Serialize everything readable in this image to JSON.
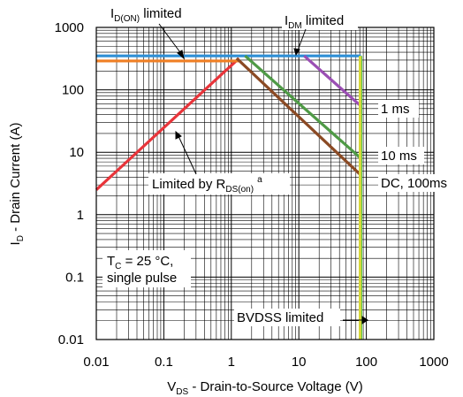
{
  "chart_data": {
    "type": "line",
    "x_scale": "log",
    "y_scale": "log",
    "xlim": [
      0.01,
      1000
    ],
    "ylim": [
      0.01,
      1000
    ],
    "grid": true,
    "x_ticks": [
      "0.01",
      "0.1",
      "1",
      "10",
      "100",
      "1000"
    ],
    "y_ticks": [
      "0.01",
      "0.1",
      "1",
      "10",
      "100",
      "1000"
    ],
    "xlabel": {
      "main": "V",
      "sub": "DS",
      "rest": " - Drain-to-Source Voltage (V)"
    },
    "ylabel": {
      "main": "I",
      "sub": "D",
      "rest": " - Drain Current (A)"
    },
    "series": [
      {
        "name": "RDS(on) limit",
        "color": "#e8343a",
        "x": [
          0.01,
          1.3
        ],
        "y": [
          2.5,
          320
        ]
      },
      {
        "name": "ID(ON) limit",
        "color": "#f07f24",
        "x": [
          0.01,
          1.3
        ],
        "y": [
          290,
          290
        ]
      },
      {
        "name": "IDM limit",
        "color": "#2f8fd6",
        "x": [
          0.01,
          83
        ],
        "y": [
          350,
          350
        ]
      },
      {
        "name": "1 ms",
        "color": "#9b4fb4",
        "x": [
          12,
          83
        ],
        "y": [
          350,
          55
        ]
      },
      {
        "name": "10 ms",
        "color": "#4f9a46",
        "x": [
          1.6,
          83
        ],
        "y": [
          350,
          8
        ]
      },
      {
        "name": "DC, 100ms",
        "color": "#8b4a24",
        "x": [
          1.2,
          83
        ],
        "y": [
          320,
          4.3
        ]
      },
      {
        "name": "BVDSS limit",
        "color": "#3bbf4a",
        "x": [
          83,
          83
        ],
        "y": [
          0.01,
          350
        ]
      },
      {
        "name": "BVDSS limit (yellow)",
        "color": "#d8d83a",
        "x": [
          81,
          81
        ],
        "y": [
          0.01,
          350
        ]
      }
    ],
    "annotations": {
      "id_on": {
        "main": "I",
        "sub": "D(ON)",
        "rest": " limited"
      },
      "idm": {
        "main": "I",
        "sub": "DM",
        "rest": " limited"
      },
      "one_ms": "1 ms",
      "ten_ms": "10 ms",
      "dc": "DC, 100ms",
      "rds": {
        "main": "Limited by R",
        "sub": "DS(on)",
        "sup": "a"
      },
      "tc_line1": {
        "main": "T",
        "sub": "C",
        "rest": " = 25 °C,"
      },
      "tc_line2": "single pulse",
      "bvdss": "BVDSS limited"
    }
  }
}
